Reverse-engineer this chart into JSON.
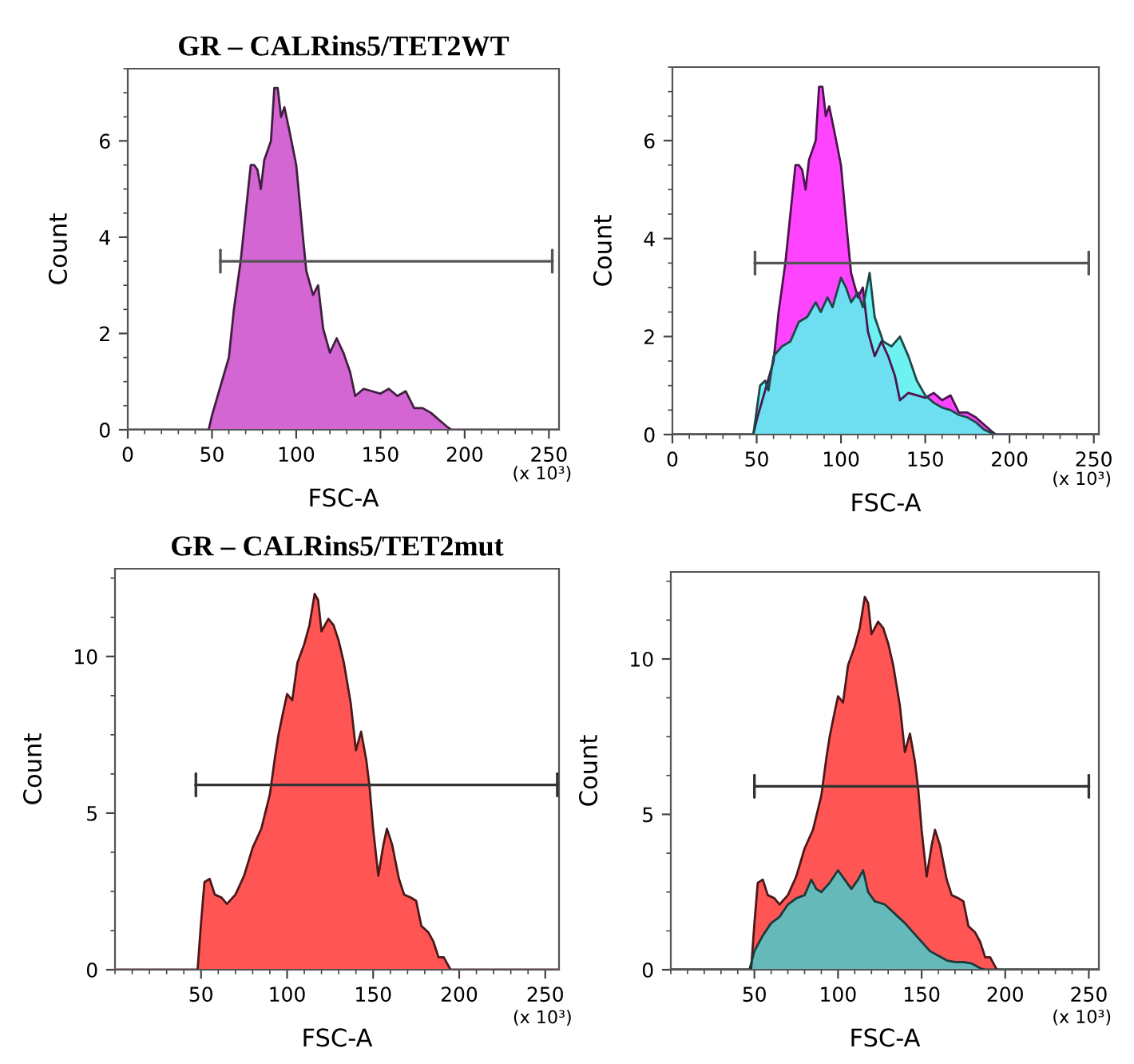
{
  "chart_data": [
    {
      "type": "area",
      "title": "GR – CALRins5/TET2WT",
      "xlabel": "FSC-A",
      "ylabel": "Count",
      "xlim": [
        0,
        256
      ],
      "ylim": [
        0,
        7.5
      ],
      "xticks": [
        0,
        50,
        100,
        150,
        200,
        250
      ],
      "yticks": [
        0,
        2,
        4,
        6
      ],
      "annotations": [
        "(x 10³)"
      ],
      "series": [
        {
          "color": "#d466d4",
          "x": [
            0,
            48,
            50,
            55,
            60,
            63,
            67,
            70,
            73,
            75,
            77,
            79,
            81,
            85,
            87,
            89,
            91,
            93,
            96,
            100,
            104,
            106,
            110,
            113,
            116,
            120,
            124,
            128,
            132,
            135,
            140,
            145,
            150,
            155,
            160,
            165,
            170,
            175,
            180,
            185,
            190,
            192,
            256
          ],
          "values": [
            0,
            0,
            0.3,
            0.9,
            1.5,
            2.5,
            3.5,
            4.5,
            5.5,
            5.5,
            5.4,
            5.0,
            5.6,
            6.0,
            7.1,
            7.1,
            6.5,
            6.7,
            6.2,
            5.5,
            4.0,
            3.3,
            2.8,
            3.0,
            2.1,
            1.6,
            1.9,
            1.6,
            1.2,
            0.7,
            0.85,
            0.8,
            0.75,
            0.85,
            0.7,
            0.8,
            0.45,
            0.45,
            0.35,
            0.2,
            0.05,
            0,
            0
          ]
        },
        {
          "type": "line",
          "color": "#555555",
          "x": [
            55,
            252
          ],
          "values": [
            3.5,
            3.5
          ]
        }
      ]
    },
    {
      "type": "area",
      "xlabel": "FSC-A",
      "ylabel": "Count",
      "xlim": [
        0,
        253
      ],
      "ylim": [
        0,
        7.5
      ],
      "xticks": [
        0,
        50,
        100,
        150,
        200,
        250
      ],
      "yticks": [
        0,
        2,
        4,
        6
      ],
      "annotations": [
        "(x 10³)"
      ],
      "series": [
        {
          "color": "#ff44ff",
          "x": [
            0,
            48,
            50,
            55,
            60,
            63,
            67,
            70,
            73,
            75,
            77,
            79,
            81,
            85,
            87,
            89,
            91,
            93,
            96,
            100,
            104,
            106,
            110,
            113,
            116,
            120,
            124,
            128,
            132,
            135,
            140,
            145,
            150,
            155,
            160,
            165,
            170,
            175,
            180,
            185,
            190,
            192,
            253
          ],
          "values": [
            0,
            0,
            0.3,
            0.9,
            1.5,
            2.5,
            3.5,
            4.5,
            5.5,
            5.5,
            5.4,
            5.0,
            5.6,
            6.0,
            7.1,
            7.1,
            6.5,
            6.7,
            6.2,
            5.5,
            4.0,
            3.3,
            2.8,
            3.0,
            2.1,
            1.6,
            1.9,
            1.6,
            1.2,
            0.7,
            0.85,
            0.8,
            0.75,
            0.85,
            0.7,
            0.8,
            0.45,
            0.45,
            0.35,
            0.2,
            0.05,
            0,
            0
          ]
        },
        {
          "color": "#5ef0f0",
          "x": [
            0,
            48,
            50,
            52,
            55,
            57,
            60,
            65,
            70,
            75,
            80,
            85,
            88,
            92,
            95,
            100,
            103,
            106,
            110,
            113,
            117,
            120,
            125,
            130,
            135,
            140,
            145,
            150,
            155,
            160,
            165,
            170,
            175,
            180,
            185,
            190,
            193,
            253
          ],
          "values": [
            0,
            0,
            0.5,
            1.0,
            1.1,
            0.9,
            1.6,
            1.8,
            1.9,
            2.3,
            2.4,
            2.7,
            2.5,
            2.8,
            2.6,
            3.2,
            3.0,
            2.7,
            2.9,
            2.6,
            3.3,
            2.4,
            1.9,
            1.8,
            2.0,
            1.6,
            1.1,
            0.8,
            0.65,
            0.55,
            0.5,
            0.4,
            0.35,
            0.25,
            0.1,
            0.02,
            0,
            0
          ]
        },
        {
          "type": "line",
          "color": "#555555",
          "x": [
            49,
            247
          ],
          "values": [
            3.5,
            3.5
          ]
        }
      ]
    },
    {
      "type": "area",
      "title": "GR – CALRins5/TET2mut",
      "xlabel": "FSC-A",
      "ylabel": "Count",
      "xlim": [
        0,
        258
      ],
      "ylim": [
        0,
        12.8
      ],
      "xticks": [
        50,
        100,
        150,
        200,
        250
      ],
      "yticks": [
        0,
        5,
        10
      ],
      "annotations": [
        "(x 10³)"
      ],
      "series": [
        {
          "color": "#ff5555",
          "x": [
            0,
            48,
            50,
            52,
            55,
            58,
            62,
            65,
            70,
            75,
            80,
            85,
            90,
            93,
            95,
            98,
            100,
            103,
            106,
            110,
            113,
            116,
            118,
            120,
            124,
            127,
            130,
            133,
            137,
            140,
            143,
            146,
            148,
            150,
            153,
            156,
            158,
            161,
            165,
            168,
            172,
            175,
            178,
            182,
            185,
            188,
            191,
            195,
            258
          ],
          "values": [
            0,
            0,
            1.5,
            2.8,
            2.9,
            2.4,
            2.3,
            2.1,
            2.4,
            3.0,
            3.9,
            4.5,
            5.6,
            6.8,
            7.5,
            8.3,
            8.8,
            8.6,
            9.8,
            10.4,
            11.0,
            12.0,
            11.8,
            10.8,
            11.2,
            11.0,
            10.5,
            9.8,
            8.5,
            7.0,
            7.6,
            6.7,
            5.8,
            4.5,
            3.0,
            4.0,
            4.5,
            4.0,
            2.9,
            2.4,
            2.3,
            2.2,
            1.4,
            1.2,
            0.9,
            0.4,
            0.4,
            0,
            0
          ]
        },
        {
          "type": "line",
          "color": "#333333",
          "x": [
            47,
            257
          ],
          "values": [
            5.9,
            5.9
          ]
        }
      ]
    },
    {
      "type": "area",
      "xlabel": "FSC-A",
      "ylabel": "Count",
      "xlim": [
        0,
        256
      ],
      "ylim": [
        0,
        12.8
      ],
      "xticks": [
        50,
        100,
        150,
        200,
        250
      ],
      "yticks": [
        0,
        5,
        10
      ],
      "annotations": [
        "(x 10³)"
      ],
      "series": [
        {
          "color": "#ff5555",
          "x": [
            0,
            48,
            50,
            52,
            55,
            58,
            62,
            65,
            70,
            75,
            80,
            85,
            90,
            93,
            95,
            98,
            100,
            103,
            106,
            110,
            113,
            116,
            118,
            120,
            124,
            127,
            130,
            133,
            137,
            140,
            143,
            146,
            148,
            150,
            153,
            156,
            158,
            161,
            165,
            168,
            172,
            175,
            178,
            182,
            185,
            188,
            191,
            195,
            256
          ],
          "values": [
            0,
            0,
            1.5,
            2.8,
            2.9,
            2.4,
            2.3,
            2.1,
            2.4,
            3.0,
            3.9,
            4.5,
            5.6,
            6.8,
            7.5,
            8.3,
            8.8,
            8.6,
            9.8,
            10.4,
            11.0,
            12.0,
            11.8,
            10.8,
            11.2,
            11.0,
            10.5,
            9.8,
            8.5,
            7.0,
            7.6,
            6.7,
            5.8,
            4.5,
            3.0,
            4.0,
            4.5,
            4.0,
            2.9,
            2.4,
            2.3,
            2.2,
            1.4,
            1.2,
            0.9,
            0.4,
            0.4,
            0,
            0
          ]
        },
        {
          "color": "#55c4c4",
          "x": [
            0,
            47,
            50,
            55,
            60,
            65,
            70,
            75,
            80,
            84,
            87,
            90,
            95,
            100,
            104,
            108,
            112,
            115,
            118,
            122,
            128,
            132,
            136,
            140,
            145,
            150,
            155,
            160,
            165,
            170,
            175,
            180,
            185,
            188,
            256
          ],
          "values": [
            0,
            0,
            0.6,
            1.1,
            1.5,
            1.7,
            2.1,
            2.3,
            2.4,
            2.9,
            2.6,
            2.5,
            2.8,
            3.2,
            2.9,
            2.6,
            2.9,
            3.2,
            2.5,
            2.2,
            2.1,
            1.9,
            1.7,
            1.5,
            1.2,
            0.9,
            0.6,
            0.45,
            0.3,
            0.25,
            0.25,
            0.2,
            0.05,
            0,
            0
          ]
        },
        {
          "type": "line",
          "color": "#333333",
          "x": [
            50,
            250
          ],
          "values": [
            5.9,
            5.9
          ]
        }
      ]
    }
  ]
}
